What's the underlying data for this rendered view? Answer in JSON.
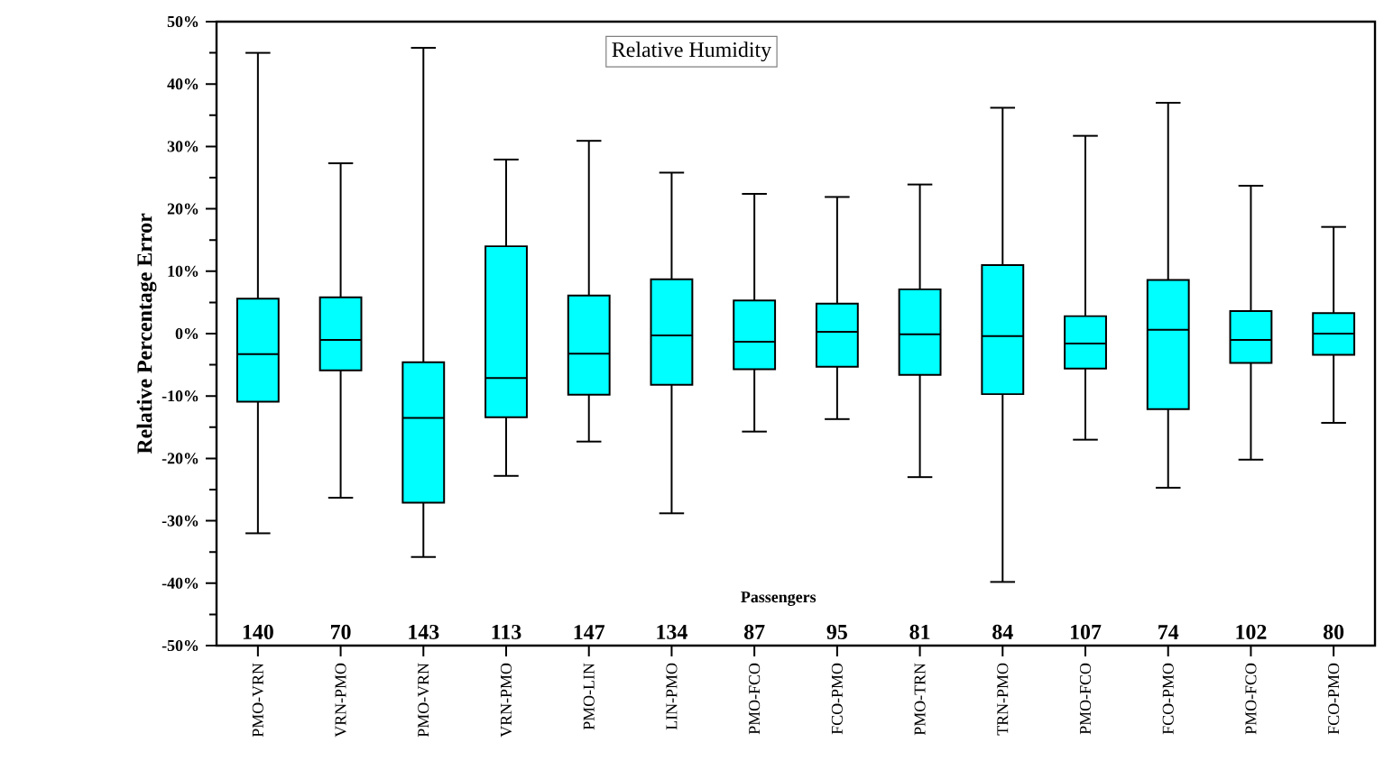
{
  "chart_data": {
    "type": "box",
    "title": "Relative Humidity",
    "ylabel": "Relative Percentage Error",
    "categories": [
      "PMO-VRN",
      "VRN-PMO",
      "PMO-VRN",
      "VRN-PMO",
      "PMO-LIN",
      "LIN-PMO",
      "PMO-FCO",
      "FCO-PMO",
      "PMO-TRN",
      "TRN-PMO",
      "PMO-FCO",
      "FCO-PMO",
      "PMO-FCO",
      "FCO-PMO"
    ],
    "color": "#00ffff",
    "boxes": [
      {
        "low": -32,
        "q1": -10.9,
        "median": -3.3,
        "q3": 5.6,
        "high": 45
      },
      {
        "low": -26.3,
        "q1": -5.9,
        "median": -1,
        "q3": 5.8,
        "high": 27.3
      },
      {
        "low": -35.8,
        "q1": -27.1,
        "median": -13.5,
        "q3": -4.6,
        "high": 45.8
      },
      {
        "low": -22.8,
        "q1": -13.4,
        "median": -7.1,
        "q3": 14,
        "high": 27.9
      },
      {
        "low": -17.3,
        "q1": -9.8,
        "median": -3.2,
        "q3": 6.1,
        "high": 30.9
      },
      {
        "low": -28.8,
        "q1": -8.2,
        "median": -0.3,
        "q3": 8.7,
        "high": 25.8
      },
      {
        "low": -15.7,
        "q1": -5.7,
        "median": -1.3,
        "q3": 5.3,
        "high": 22.4
      },
      {
        "low": -13.7,
        "q1": -5.3,
        "median": 0.3,
        "q3": 4.8,
        "high": 21.9
      },
      {
        "low": -23,
        "q1": -6.6,
        "median": -0.1,
        "q3": 7.1,
        "high": 23.9
      },
      {
        "low": -39.8,
        "q1": -9.7,
        "median": -0.4,
        "q3": 11,
        "high": 36.2
      },
      {
        "low": -17,
        "q1": -5.6,
        "median": -1.6,
        "q3": 2.8,
        "high": 31.7
      },
      {
        "low": -24.7,
        "q1": -12.1,
        "median": 0.6,
        "q3": 8.6,
        "high": 37
      },
      {
        "low": -20.2,
        "q1": -4.7,
        "median": -1,
        "q3": 3.6,
        "high": 23.7
      },
      {
        "low": -14.3,
        "q1": -3.4,
        "median": 0,
        "q3": 3.3,
        "high": 17.1
      }
    ],
    "ylim": [
      -50,
      50
    ],
    "yticks": [
      {
        "value": -50,
        "label": "-50%"
      },
      {
        "value": -40,
        "label": "-40%"
      },
      {
        "value": -30,
        "label": "-30%"
      },
      {
        "value": -20,
        "label": "-20%"
      },
      {
        "value": -10,
        "label": "-10%"
      },
      {
        "value": 0,
        "label": "0%"
      },
      {
        "value": 10,
        "label": "10%"
      },
      {
        "value": 20,
        "label": "20%"
      },
      {
        "value": 30,
        "label": "30%"
      },
      {
        "value": 40,
        "label": "40%"
      },
      {
        "value": 50,
        "label": "50%"
      }
    ],
    "annotations": [
      "Passengers",
      "140",
      "70",
      "143",
      "113",
      "147",
      "134",
      "87",
      "95",
      "81",
      "84",
      "107",
      "74",
      "102",
      "80"
    ]
  }
}
